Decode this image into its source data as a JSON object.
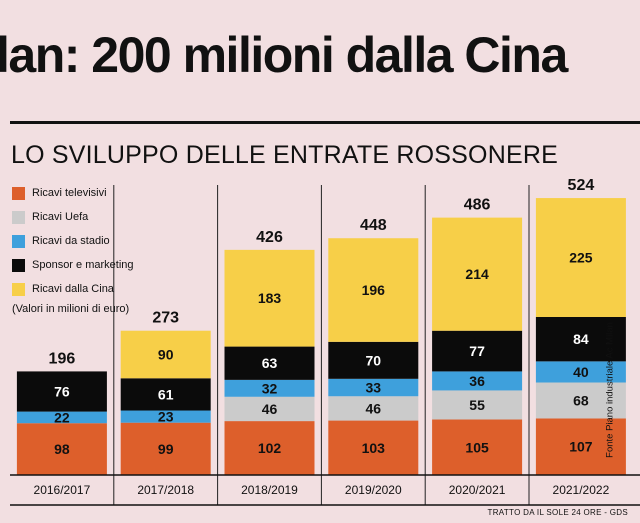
{
  "headline": "lan: 200 milioni dalla Cina",
  "chart_data": {
    "type": "bar",
    "stacked": true,
    "title": "LO SVILUPPO DELLE ENTRATE ROSSONERE",
    "unit_note": "(Valori in milioni di euro)",
    "categories": [
      "2016/2017",
      "2017/2018",
      "2018/2019",
      "2019/2020",
      "2020/2021",
      "2021/2022"
    ],
    "series": [
      {
        "name": "Ricavi televisivi",
        "color": "#dd5f2b",
        "values": [
          98,
          99,
          102,
          103,
          105,
          107
        ]
      },
      {
        "name": "Ricavi Uefa",
        "color": "#cbcbcb",
        "values": [
          0,
          0,
          46,
          46,
          55,
          68
        ]
      },
      {
        "name": "Ricavi da stadio",
        "color": "#3ea0dc",
        "values": [
          22,
          23,
          32,
          33,
          36,
          40
        ]
      },
      {
        "name": "Sponsor e marketing",
        "color": "#0b0b0b",
        "values": [
          76,
          61,
          63,
          70,
          77,
          84
        ]
      },
      {
        "name": "Ricavi dalla Cina",
        "color": "#f7cf48",
        "values": [
          0,
          90,
          183,
          196,
          214,
          225
        ]
      }
    ],
    "totals": [
      196,
      273,
      426,
      448,
      486,
      524
    ]
  },
  "source": "Fonte Piano industriale Ac Milan",
  "credit": "TRATTO DA IL SOLE 24 ORE - GDS"
}
